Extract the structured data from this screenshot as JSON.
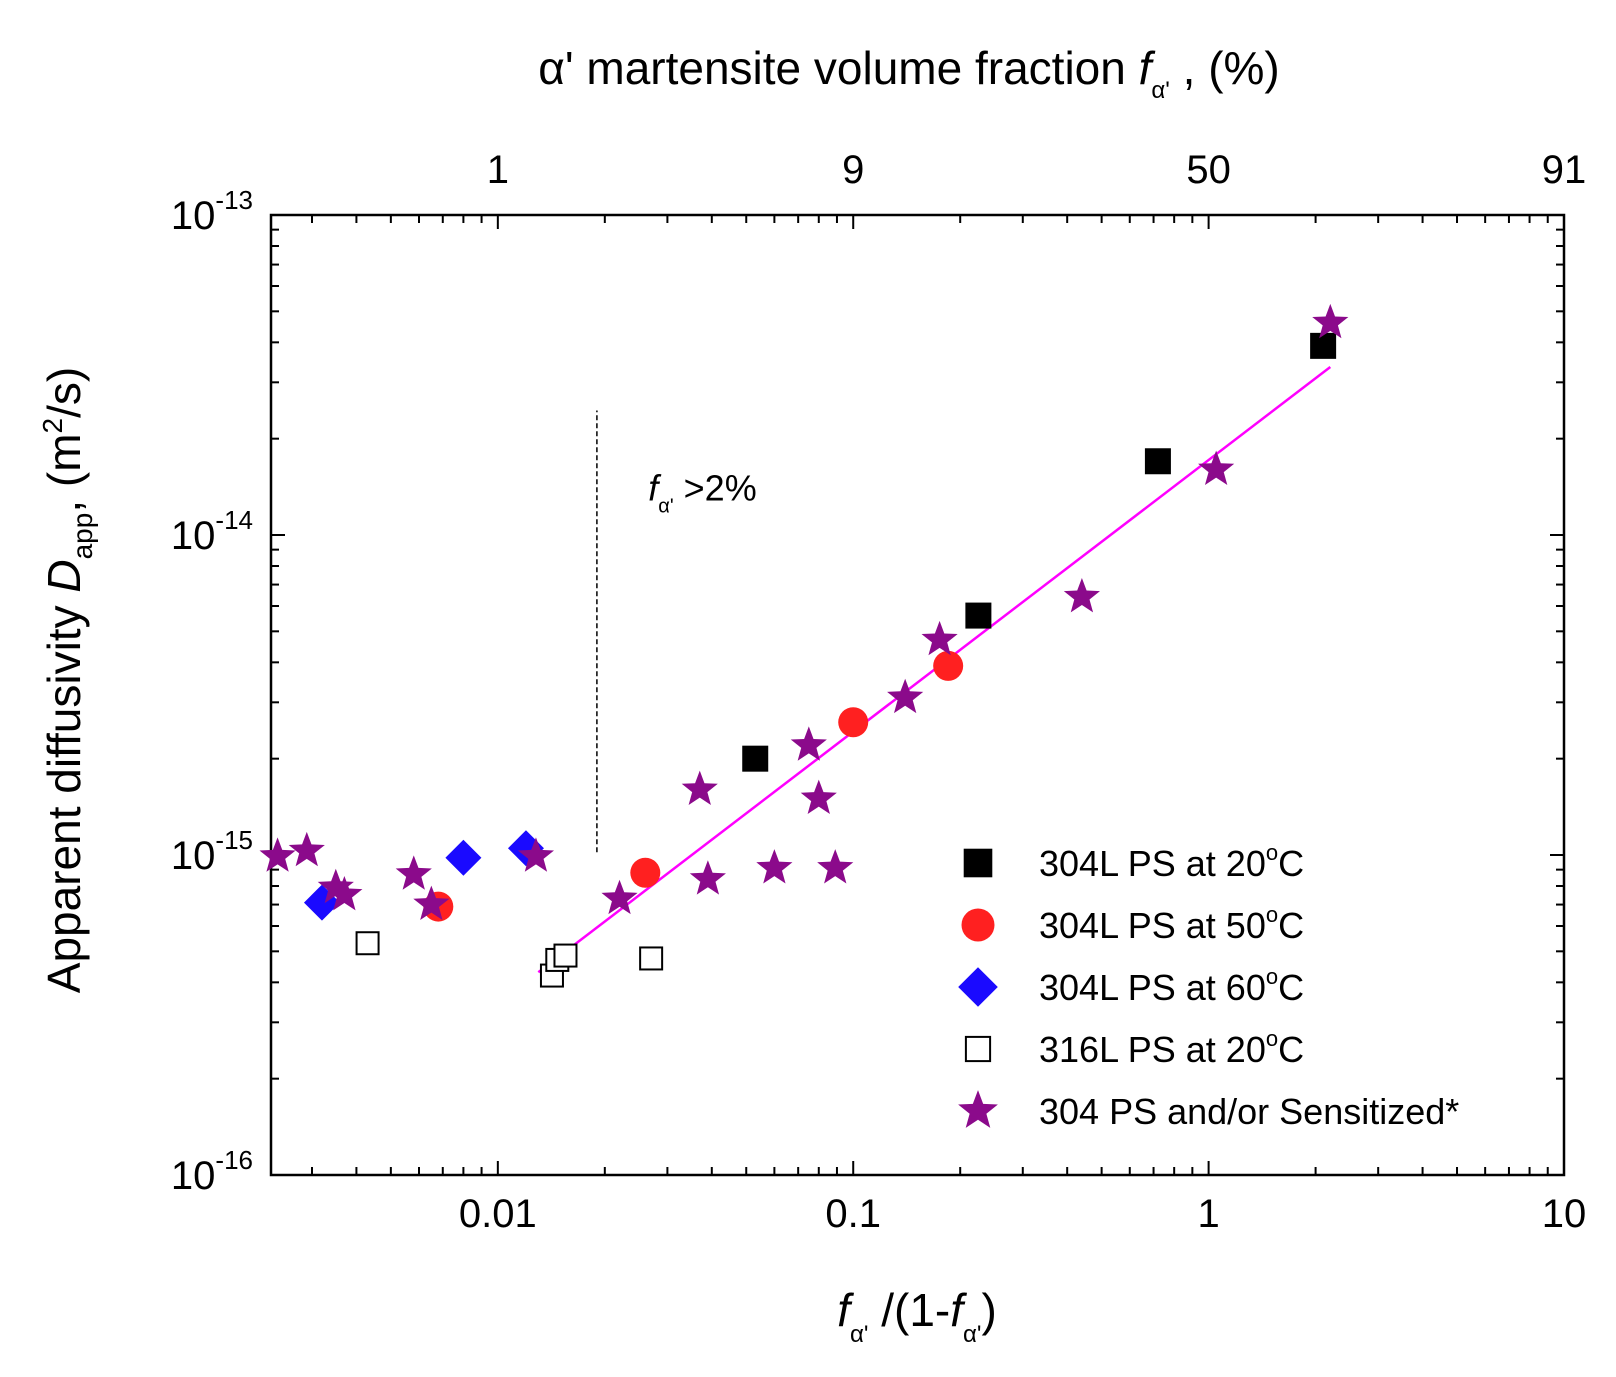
{
  "chart_data": {
    "type": "scatter",
    "xscale": "log",
    "yscale": "log",
    "xlim": [
      0.0023,
      10
    ],
    "ylim": [
      1e-16,
      1e-13
    ],
    "xlabel": {
      "f": "f",
      "sub": "α'",
      "mid": " /(1-",
      "f2": "f",
      "sub2": "α'",
      "end": ")"
    },
    "ylabel": {
      "pre": "Apparent diffusivity ",
      "D": "D",
      "sub": "app",
      "mid": ", (m",
      "sup": "2",
      "end": "/s)"
    },
    "top_axis_title": {
      "pre": "α' martensite volume fraction ",
      "f": "f",
      "sub": "α'",
      "end": " , (%)"
    },
    "x_tick_labels": [
      {
        "x": 0.01,
        "label": "0.01"
      },
      {
        "x": 0.1,
        "label": "0.1"
      },
      {
        "x": 1,
        "label": "1"
      },
      {
        "x": 10,
        "label": "10"
      }
    ],
    "y_tick_labels": [
      {
        "y": 1e-16,
        "base": "10",
        "exp": "-16"
      },
      {
        "y": 1e-15,
        "base": "10",
        "exp": "-15"
      },
      {
        "y": 1e-14,
        "base": "10",
        "exp": "-14"
      },
      {
        "y": 1e-13,
        "base": "10",
        "exp": "-13"
      }
    ],
    "top_tick_labels": [
      {
        "x": 0.01,
        "label": "1"
      },
      {
        "x": 0.1,
        "label": "9"
      },
      {
        "x": 1,
        "label": "50"
      },
      {
        "x": 10,
        "label": "91"
      }
    ],
    "annotations": [
      {
        "type": "vline",
        "x": 0.019,
        "y": [
          1.02e-15,
          2.45e-14
        ],
        "style": "dashed"
      },
      {
        "type": "text",
        "f": "f",
        "sub": "α'",
        "text": " >2%",
        "x": 0.0265,
        "y": 1.28e-14
      }
    ],
    "fit_line": {
      "color": "#ff00ff",
      "x": [
        0.013,
        2.2
      ],
      "y": [
        4.3e-16,
        3.35e-14
      ]
    },
    "series": [
      {
        "name": "304L PS at 20°C",
        "label": "304L PS at 20",
        "unit": "C",
        "marker": "square",
        "color": "#000000",
        "filled": true,
        "points": [
          [
            0.053,
            2e-15
          ],
          [
            0.225,
            5.6e-15
          ],
          [
            0.72,
            1.7e-14
          ],
          [
            2.1,
            3.9e-14
          ]
        ]
      },
      {
        "name": "304L PS at 50°C",
        "label": "304L PS at 50",
        "unit": "C",
        "marker": "circle",
        "color": "#ff2020",
        "filled": true,
        "points": [
          [
            0.0068,
            6.9e-16
          ],
          [
            0.026,
            8.8e-16
          ],
          [
            0.1,
            2.6e-15
          ],
          [
            0.185,
            3.9e-15
          ]
        ]
      },
      {
        "name": "304L PS at 60°C",
        "label": "304L PS at 60",
        "unit": "C",
        "marker": "diamond",
        "color": "#1a0aff",
        "filled": true,
        "points": [
          [
            0.0032,
            7.1e-16
          ],
          [
            0.008,
            9.8e-16
          ],
          [
            0.012,
            1.05e-15
          ]
        ]
      },
      {
        "name": "316L PS at 20°C",
        "label": "316L PS at 20",
        "unit": "C",
        "marker": "square",
        "color": "#000000",
        "filled": false,
        "points": [
          [
            0.0043,
            5.3e-16
          ],
          [
            0.0142,
            4.2e-16
          ],
          [
            0.0147,
            4.7e-16
          ],
          [
            0.0155,
            4.85e-16
          ],
          [
            0.027,
            4.75e-16
          ]
        ]
      },
      {
        "name": "304 PS and/or Sensitized*",
        "label": "304 PS and/or Sensitized*",
        "unit": "",
        "marker": "star",
        "color": "#8b0a8b",
        "filled": true,
        "points": [
          [
            0.0024,
            9.9e-16
          ],
          [
            0.0029,
            1.03e-15
          ],
          [
            0.0035,
            7.9e-16
          ],
          [
            0.0037,
            7.5e-16
          ],
          [
            0.0058,
            8.7e-16
          ],
          [
            0.0065,
            7e-16
          ],
          [
            0.0128,
            9.9e-16
          ],
          [
            0.022,
            7.3e-16
          ],
          [
            0.037,
            1.6e-15
          ],
          [
            0.039,
            8.4e-16
          ],
          [
            0.06,
            9.1e-16
          ],
          [
            0.075,
            2.2e-15
          ],
          [
            0.08,
            1.5e-15
          ],
          [
            0.089,
            9.1e-16
          ],
          [
            0.14,
            3.1e-15
          ],
          [
            0.175,
            4.7e-15
          ],
          [
            0.44,
            6.4e-15
          ],
          [
            1.05,
            1.6e-14
          ],
          [
            2.2,
            4.6e-14
          ]
        ]
      }
    ]
  }
}
